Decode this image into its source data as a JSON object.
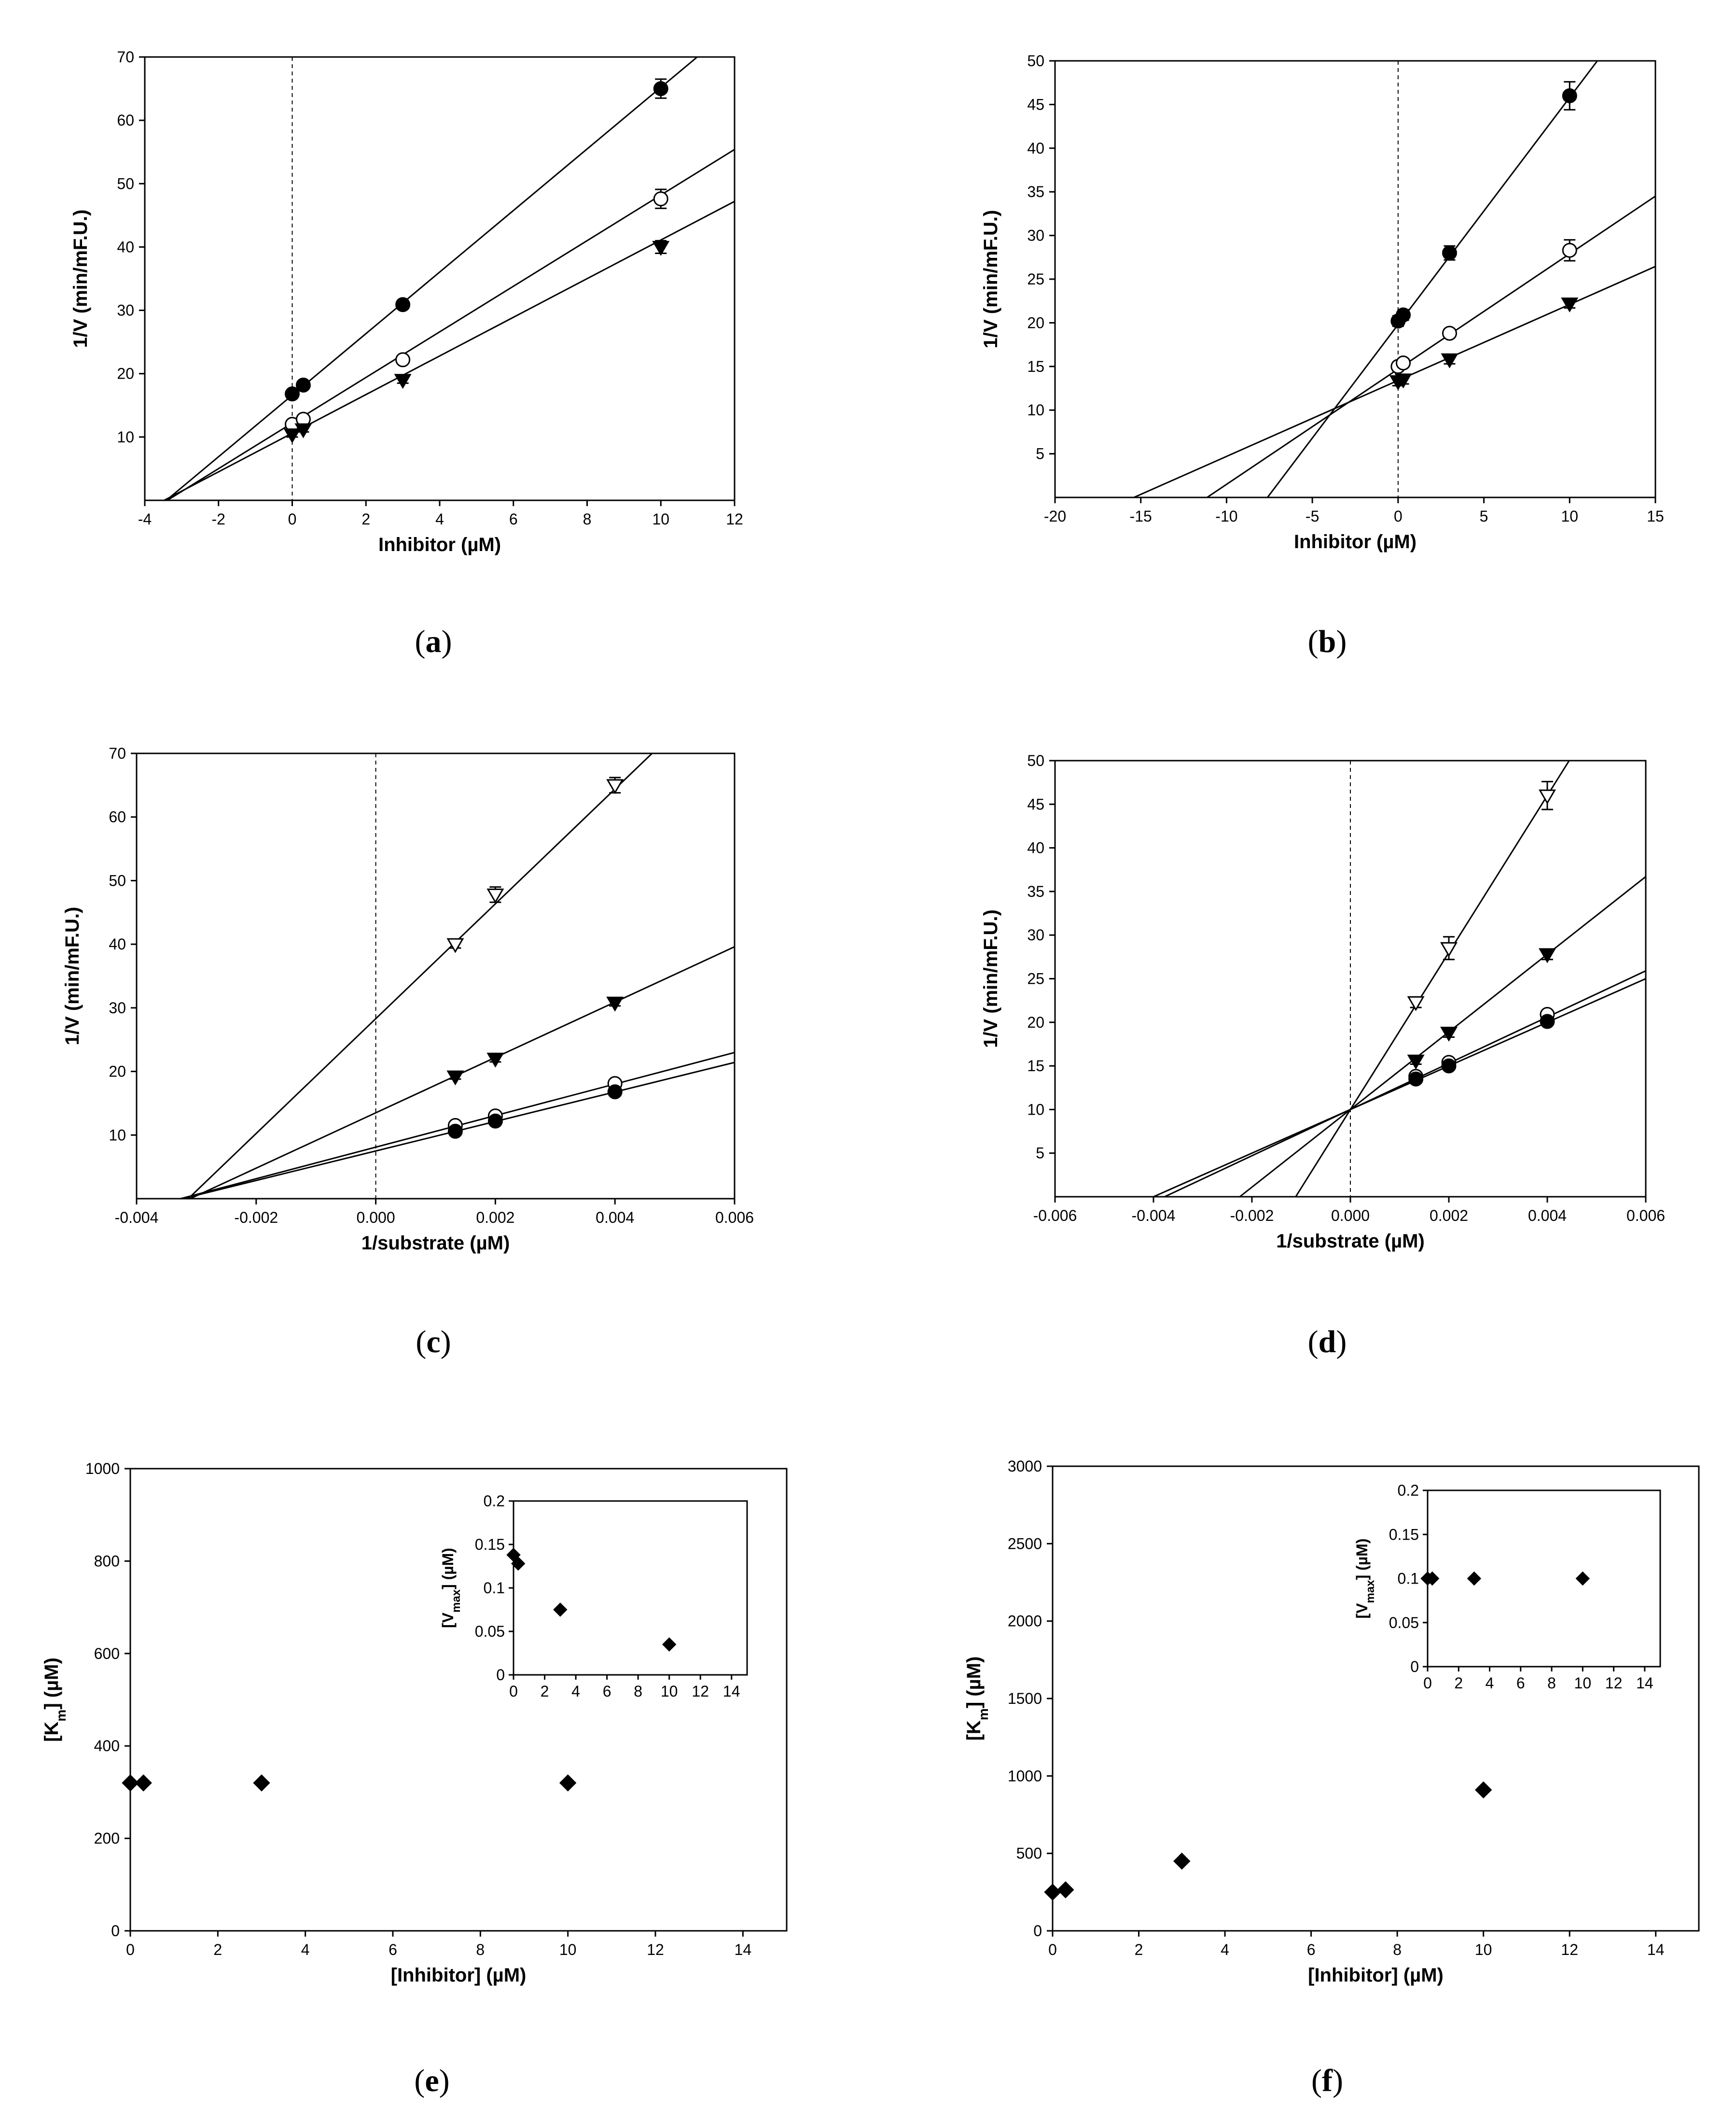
{
  "figure": {
    "panel_labels": [
      "a",
      "b",
      "c",
      "d",
      "e",
      "f"
    ]
  },
  "chart_data": [
    {
      "id": "a",
      "type": "scatter",
      "xlabel": "Inhibitor (µM)",
      "ylabel": "1/V (min/mF.U.)",
      "xlim": [
        -4,
        12
      ],
      "ylim": [
        0,
        70
      ],
      "xticks": [
        -4,
        -2,
        0,
        2,
        4,
        6,
        8,
        10,
        12
      ],
      "yticks": [
        10,
        20,
        30,
        40,
        50,
        60,
        70
      ],
      "x_dashed_zero": true,
      "series": [
        {
          "name": "filled-circle",
          "marker": "circle-filled",
          "x": [
            0,
            0.3,
            3,
            10
          ],
          "y": [
            16.8,
            18.2,
            30.9,
            65.0
          ],
          "err": [
            0.5,
            0.5,
            0.7,
            1.5
          ],
          "fit": {
            "slope": 4.86,
            "intercept": 16.6
          }
        },
        {
          "name": "open-circle",
          "marker": "circle-open",
          "x": [
            0,
            0.3,
            3,
            10
          ],
          "y": [
            12.0,
            12.8,
            22.2,
            47.6
          ],
          "err": [
            0.5,
            0.5,
            0.6,
            1.5
          ],
          "fit": {
            "slope": 3.6,
            "intercept": 12.2
          }
        },
        {
          "name": "filled-triangle",
          "marker": "triangle-down-filled",
          "x": [
            0,
            0.3,
            3,
            10
          ],
          "y": [
            10.4,
            11.2,
            19.0,
            40.0
          ],
          "err": [
            0.4,
            0.4,
            0.5,
            1.0
          ],
          "fit": {
            "slope": 3.05,
            "intercept": 10.6
          }
        }
      ]
    },
    {
      "id": "b",
      "type": "scatter",
      "xlabel": "Inhibitor (µM)",
      "ylabel": "1/V (min/mF.U.)",
      "xlim": [
        -20,
        15
      ],
      "ylim": [
        0,
        50
      ],
      "xticks": [
        -20,
        -15,
        -10,
        -5,
        0,
        5,
        10,
        15
      ],
      "yticks": [
        5,
        10,
        15,
        20,
        25,
        30,
        35,
        40,
        45,
        50
      ],
      "x_dashed_zero": true,
      "series": [
        {
          "name": "filled-circle",
          "marker": "circle-filled",
          "x": [
            0,
            0.3,
            3,
            10
          ],
          "y": [
            20.2,
            20.9,
            28.0,
            46.0
          ],
          "err": [
            0.6,
            0.6,
            0.8,
            1.6
          ],
          "fit": {
            "slope": 2.6,
            "intercept": 19.8
          }
        },
        {
          "name": "open-circle",
          "marker": "circle-open",
          "x": [
            0,
            0.3,
            3,
            10
          ],
          "y": [
            15.0,
            15.4,
            18.8,
            28.3
          ],
          "err": [
            0.5,
            0.5,
            0.5,
            1.2
          ],
          "fit": {
            "slope": 1.32,
            "intercept": 14.7
          }
        },
        {
          "name": "filled-triangle",
          "marker": "triangle-down-filled",
          "x": [
            0,
            0.3,
            3,
            10
          ],
          "y": [
            13.3,
            13.5,
            15.8,
            22.2
          ],
          "err": [
            0.5,
            0.5,
            0.5,
            0.5
          ],
          "fit": {
            "slope": 0.87,
            "intercept": 13.4
          }
        }
      ]
    },
    {
      "id": "c",
      "type": "scatter",
      "xlabel": "1/substrate (µM)",
      "ylabel": "1/V (min/mF.U.)",
      "xlim": [
        -0.004,
        0.006
      ],
      "ylim": [
        0,
        70
      ],
      "xticks": [
        -0.004,
        -0.002,
        0.0,
        0.002,
        0.004,
        0.006
      ],
      "xtick_labels": [
        "-0.004",
        "-0.002",
        "0.000",
        "0.002",
        "0.004",
        "0.006"
      ],
      "yticks": [
        10,
        20,
        30,
        40,
        50,
        60,
        70
      ],
      "x_dashed_zero": true,
      "series": [
        {
          "name": "open-triangle",
          "marker": "triangle-down-open",
          "x": [
            0.00133,
            0.002,
            0.004
          ],
          "y": [
            40.0,
            47.8,
            65.0
          ],
          "err": [
            0.6,
            1.2,
            1.2
          ],
          "fit": {
            "slope": 9025,
            "intercept": 28.3
          }
        },
        {
          "name": "filled-triangle",
          "marker": "triangle-down-filled",
          "x": [
            0.00133,
            0.002,
            0.004
          ],
          "y": [
            19.2,
            22.0,
            30.8
          ],
          "err": [
            0.4,
            0.5,
            0.5
          ],
          "fit": {
            "slope": 4350,
            "intercept": 13.5
          }
        },
        {
          "name": "open-circle",
          "marker": "circle-open",
          "x": [
            0.00133,
            0.002,
            0.004
          ],
          "y": [
            11.5,
            13.0,
            18.1
          ],
          "err": [
            0.3,
            0.3,
            0.4
          ],
          "fit": {
            "slope": 2480,
            "intercept": 8.1
          }
        },
        {
          "name": "filled-circle",
          "marker": "circle-filled",
          "x": [
            0.00133,
            0.002,
            0.004
          ],
          "y": [
            10.6,
            12.2,
            16.8
          ],
          "err": [
            0.3,
            0.3,
            0.4
          ],
          "fit": {
            "slope": 2320,
            "intercept": 7.5
          }
        }
      ]
    },
    {
      "id": "d",
      "type": "scatter",
      "xlabel": "1/substrate (µM)",
      "ylabel": "1/V (min/mF.U.)",
      "xlim": [
        -0.006,
        0.006
      ],
      "ylim": [
        0,
        50
      ],
      "xticks": [
        -0.006,
        -0.004,
        -0.002,
        0.0,
        0.002,
        0.004,
        0.006
      ],
      "xtick_labels": [
        "-0.006",
        "-0.004",
        "-0.002",
        "0.000",
        "0.002",
        "0.004",
        "0.006"
      ],
      "yticks": [
        5,
        10,
        15,
        20,
        25,
        30,
        35,
        40,
        45,
        50
      ],
      "x_dashed_zero": true,
      "series": [
        {
          "name": "open-triangle",
          "marker": "triangle-down-open",
          "x": [
            0.00133,
            0.002,
            0.004
          ],
          "y": [
            22.3,
            28.5,
            46.0
          ],
          "err": [
            0.6,
            1.3,
            1.6
          ],
          "fit": {
            "slope": 9000,
            "intercept": 10.0
          }
        },
        {
          "name": "filled-triangle",
          "marker": "triangle-down-filled",
          "x": [
            0.00133,
            0.002,
            0.004
          ],
          "y": [
            15.6,
            18.8,
            27.8
          ],
          "err": [
            0.4,
            0.5,
            0.6
          ],
          "fit": {
            "slope": 4450,
            "intercept": 10.0
          }
        },
        {
          "name": "open-circle",
          "marker": "circle-open",
          "x": [
            0.00133,
            0.002,
            0.004
          ],
          "y": [
            13.8,
            15.4,
            20.9
          ],
          "err": [
            0.3,
            0.3,
            0.4
          ],
          "fit": {
            "slope": 2650,
            "intercept": 10.0
          }
        },
        {
          "name": "filled-circle",
          "marker": "circle-filled",
          "x": [
            0.00133,
            0.002,
            0.004
          ],
          "y": [
            13.5,
            15.0,
            20.1
          ],
          "err": [
            0.3,
            0.3,
            0.4
          ],
          "fit": {
            "slope": 2500,
            "intercept": 10.0
          }
        }
      ]
    },
    {
      "id": "e",
      "type": "scatter",
      "xlabel": "[Inhibitor] (µM)",
      "ylabel": "[Km] (µM)",
      "xlim": [
        0,
        15
      ],
      "ylim": [
        0,
        1000
      ],
      "xticks": [
        0,
        2,
        4,
        6,
        8,
        10,
        12,
        14
      ],
      "yticks": [
        0,
        200,
        400,
        600,
        800,
        1000
      ],
      "series": [
        {
          "name": "Km",
          "marker": "diamond-filled",
          "x": [
            0,
            0.3,
            3,
            10
          ],
          "y": [
            320,
            320,
            320,
            320
          ]
        }
      ],
      "inset": {
        "ylabel": "[Vmax] (µM)",
        "xlim": [
          0,
          15
        ],
        "ylim": [
          0,
          0.2
        ],
        "xticks": [
          0,
          2,
          4,
          6,
          8,
          10,
          12,
          14
        ],
        "yticks": [
          0,
          0.05,
          0.1,
          0.15,
          0.2
        ],
        "ytick_labels": [
          "0",
          "0.05",
          "0.1",
          "0.15",
          "0.2"
        ],
        "series": [
          {
            "name": "Vmax",
            "marker": "diamond-filled",
            "x": [
              0,
              0.3,
              3,
              10
            ],
            "y": [
              0.138,
              0.128,
              0.075,
              0.035
            ]
          }
        ]
      }
    },
    {
      "id": "f",
      "type": "scatter",
      "xlabel": "[Inhibitor] (µM)",
      "ylabel": "[Km] (µM)",
      "xlim": [
        0,
        15
      ],
      "ylim": [
        0,
        3000
      ],
      "xticks": [
        0,
        2,
        4,
        6,
        8,
        10,
        12,
        14
      ],
      "yticks": [
        0,
        500,
        1000,
        1500,
        2000,
        2500,
        3000
      ],
      "series": [
        {
          "name": "Km",
          "marker": "diamond-filled",
          "x": [
            0,
            0.3,
            3,
            10
          ],
          "y": [
            250,
            265,
            450,
            910
          ]
        }
      ],
      "inset": {
        "ylabel": "[Vmax] (µM)",
        "xlim": [
          0,
          15
        ],
        "ylim": [
          0,
          0.2
        ],
        "xticks": [
          0,
          2,
          4,
          6,
          8,
          10,
          12,
          14
        ],
        "yticks": [
          0,
          0.05,
          0.1,
          0.15,
          0.2
        ],
        "ytick_labels": [
          "0",
          "0.05",
          "0.1",
          "0.15",
          "0.2"
        ],
        "series": [
          {
            "name": "Vmax",
            "marker": "diamond-filled",
            "x": [
              0,
              0.3,
              3,
              10
            ],
            "y": [
              0.1,
              0.1,
              0.1,
              0.1
            ]
          }
        ]
      }
    }
  ]
}
